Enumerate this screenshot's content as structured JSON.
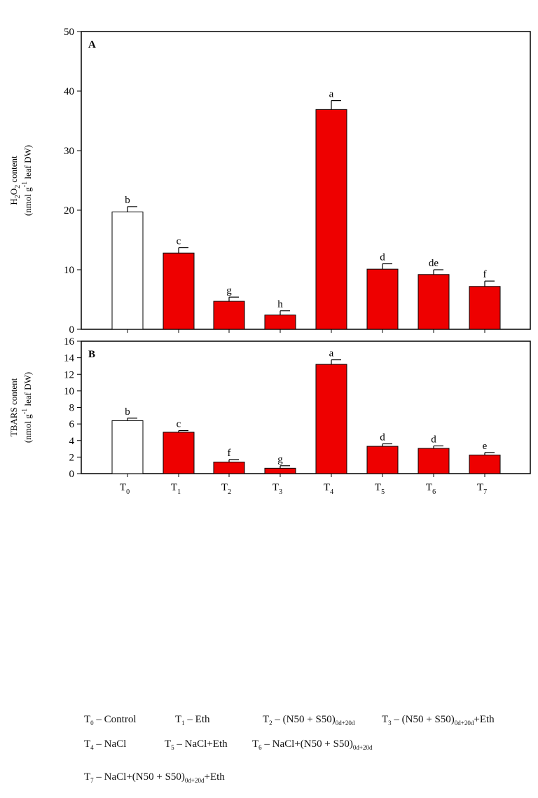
{
  "chart_data": [
    {
      "type": "bar",
      "panel_label": "A",
      "ylabel_line1": "H2O2 content",
      "ylabel_line2": "(nmol g-1 leaf DW)",
      "ylim": [
        0,
        50
      ],
      "yticks": [
        0,
        10,
        20,
        30,
        40,
        50
      ],
      "categories": [
        "T0",
        "T1",
        "T2",
        "T3",
        "T4",
        "T5",
        "T6",
        "T7"
      ],
      "values": [
        19.7,
        12.8,
        4.7,
        2.4,
        36.9,
        10.1,
        9.2,
        7.2
      ],
      "errors": [
        0.9,
        0.9,
        0.7,
        0.7,
        1.5,
        0.9,
        0.8,
        0.9
      ],
      "letters": [
        "b",
        "c",
        "g",
        "h",
        "a",
        "d",
        "de",
        "f"
      ],
      "show_xticklabels": false
    },
    {
      "type": "bar",
      "panel_label": "B",
      "ylabel_line1": "TBARS content",
      "ylabel_line2": "(nmol g-1 leaf DW)",
      "ylim": [
        0,
        16
      ],
      "yticks": [
        0,
        2,
        4,
        6,
        8,
        10,
        12,
        14,
        16
      ],
      "categories": [
        "T0",
        "T1",
        "T2",
        "T3",
        "T4",
        "T5",
        "T6",
        "T7"
      ],
      "values": [
        6.4,
        5.0,
        1.4,
        0.65,
        13.2,
        3.3,
        3.05,
        2.25
      ],
      "errors": [
        0.3,
        0.2,
        0.3,
        0.3,
        0.55,
        0.3,
        0.3,
        0.3
      ],
      "letters": [
        "b",
        "c",
        "f",
        "g",
        "a",
        "d",
        "d",
        "e"
      ],
      "show_xticklabels": true
    }
  ],
  "colors": {
    "control": "#ffffff",
    "treatment": "#ee0000",
    "axis": "#000000"
  },
  "legend": [
    {
      "sym": "T",
      "sub": "0",
      "text": "– Control"
    },
    {
      "sym": "T",
      "sub": "1",
      "text": "– Eth"
    },
    {
      "sym": "T",
      "sub": "2",
      "text": "– (N50 + S50)",
      "tsub": "0d+20d",
      "after": ""
    },
    {
      "sym": "T",
      "sub": "3",
      "text": "– (N50 + S50)",
      "tsub": "0d+20d",
      "after": "+Eth"
    },
    {
      "sym": "T",
      "sub": "4",
      "text": "– NaCl"
    },
    {
      "sym": "T",
      "sub": "5",
      "text": "– NaCl+Eth"
    },
    {
      "sym": "T",
      "sub": "6",
      "text": "– NaCl+(N50 + S50)",
      "tsub": "0d+20d",
      "after": ""
    },
    {
      "sym": "T",
      "sub": "7",
      "text": "– NaCl+(N50 + S50)",
      "tsub": "0d+20d",
      "after": "+Eth"
    }
  ]
}
